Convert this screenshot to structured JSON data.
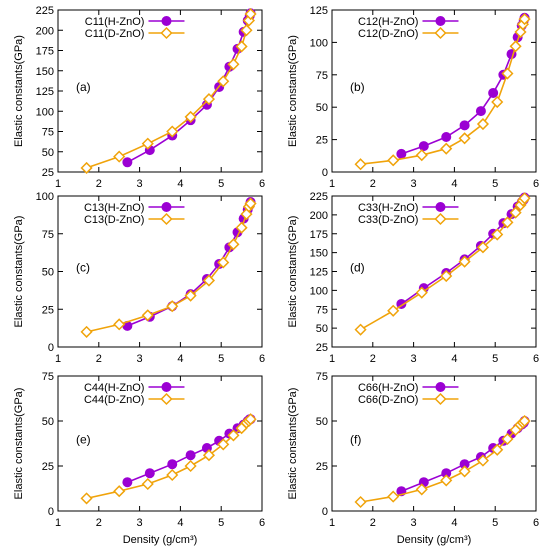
{
  "chart_data": [
    {
      "type": "line",
      "panel_label": "(a)",
      "ylabel": "Elastic constants(GPa)",
      "xlabel": "",
      "xlim": [
        1,
        6
      ],
      "ylim": [
        25,
        225
      ],
      "xticks": [
        1,
        2,
        3,
        4,
        5,
        6
      ],
      "yticks": [
        25,
        50,
        75,
        100,
        125,
        150,
        175,
        200,
        225
      ],
      "legend_position": "top-center",
      "series": [
        {
          "name": "C11(H-ZnO)",
          "color": "#9b00d3",
          "marker": "filled-circle",
          "x": [
            2.7,
            3.25,
            3.8,
            4.25,
            4.65,
            4.95,
            5.2,
            5.4,
            5.55,
            5.65,
            5.7,
            5.72
          ],
          "y": [
            37,
            52,
            70,
            89,
            108,
            130,
            155,
            177,
            198,
            212,
            218,
            221
          ]
        },
        {
          "name": "C11(D-ZnO)",
          "color": "#f0a30a",
          "marker": "open-diamond",
          "x": [
            1.7,
            2.5,
            3.2,
            3.8,
            4.25,
            4.7,
            5.05,
            5.3,
            5.5,
            5.62,
            5.68,
            5.72
          ],
          "y": [
            30,
            44,
            60,
            75,
            93,
            115,
            137,
            158,
            180,
            200,
            212,
            220
          ]
        }
      ]
    },
    {
      "type": "line",
      "panel_label": "(b)",
      "ylabel": "Elastic constants(GPa)",
      "xlabel": "",
      "xlim": [
        1,
        6
      ],
      "ylim": [
        0,
        125
      ],
      "xticks": [
        1,
        2,
        3,
        4,
        5,
        6
      ],
      "yticks": [
        0,
        25,
        50,
        75,
        100,
        125
      ],
      "legend_position": "top-center",
      "series": [
        {
          "name": "C12(H-ZnO)",
          "color": "#9b00d3",
          "marker": "filled-circle",
          "x": [
            2.7,
            3.25,
            3.8,
            4.25,
            4.65,
            4.95,
            5.2,
            5.4,
            5.55,
            5.65,
            5.7,
            5.72
          ],
          "y": [
            14,
            20,
            27,
            36,
            47,
            61,
            75,
            91,
            104,
            113,
            117,
            119
          ]
        },
        {
          "name": "C12(D-ZnO)",
          "color": "#f0a30a",
          "marker": "open-diamond",
          "x": [
            1.7,
            2.5,
            3.2,
            3.8,
            4.25,
            4.7,
            5.05,
            5.3,
            5.5,
            5.62,
            5.68,
            5.72
          ],
          "y": [
            6,
            9,
            13,
            18,
            26,
            37,
            54,
            76,
            97,
            108,
            114,
            118
          ]
        }
      ]
    },
    {
      "type": "line",
      "panel_label": "(c)",
      "ylabel": "Elastic constants(GPa)",
      "xlabel": "",
      "xlim": [
        1,
        6
      ],
      "ylim": [
        0,
        100
      ],
      "xticks": [
        1,
        2,
        3,
        4,
        5,
        6
      ],
      "yticks": [
        0,
        25,
        50,
        75,
        100
      ],
      "legend_position": "top-center",
      "series": [
        {
          "name": "C13(H-ZnO)",
          "color": "#9b00d3",
          "marker": "filled-circle",
          "x": [
            2.7,
            3.25,
            3.8,
            4.25,
            4.65,
            4.95,
            5.2,
            5.4,
            5.55,
            5.65,
            5.7,
            5.72
          ],
          "y": [
            14,
            20,
            27,
            35,
            45,
            55,
            66,
            76,
            85,
            91,
            94,
            96
          ]
        },
        {
          "name": "C13(D-ZnO)",
          "color": "#f0a30a",
          "marker": "open-diamond",
          "x": [
            1.7,
            2.5,
            3.2,
            3.8,
            4.25,
            4.7,
            5.05,
            5.3,
            5.5,
            5.62,
            5.68,
            5.72
          ],
          "y": [
            10,
            15,
            21,
            27,
            34,
            44,
            56,
            68,
            79,
            88,
            93,
            95
          ]
        }
      ]
    },
    {
      "type": "line",
      "panel_label": "(d)",
      "ylabel": "Elastic constants(GPa)",
      "xlabel": "",
      "xlim": [
        1,
        6
      ],
      "ylim": [
        25,
        225
      ],
      "xticks": [
        1,
        2,
        3,
        4,
        5,
        6
      ],
      "yticks": [
        25,
        50,
        75,
        100,
        125,
        150,
        175,
        200,
        225
      ],
      "legend_position": "top-center",
      "series": [
        {
          "name": "C33(H-ZnO)",
          "color": "#9b00d3",
          "marker": "filled-circle",
          "x": [
            2.7,
            3.25,
            3.8,
            4.25,
            4.65,
            4.95,
            5.2,
            5.4,
            5.55,
            5.65,
            5.7,
            5.72
          ],
          "y": [
            82,
            103,
            123,
            141,
            159,
            175,
            189,
            201,
            211,
            217,
            220,
            223
          ]
        },
        {
          "name": "C33(D-ZnO)",
          "color": "#f0a30a",
          "marker": "open-diamond",
          "x": [
            1.7,
            2.5,
            3.2,
            3.8,
            4.25,
            4.7,
            5.05,
            5.3,
            5.5,
            5.62,
            5.68,
            5.72
          ],
          "y": [
            48,
            73,
            97,
            119,
            138,
            157,
            174,
            190,
            203,
            213,
            219,
            222
          ]
        }
      ]
    },
    {
      "type": "line",
      "panel_label": "(e)",
      "ylabel": "Elastic constants(GPa)",
      "xlabel": "Density (g/cm³)",
      "xlim": [
        1,
        6
      ],
      "ylim": [
        0,
        75
      ],
      "xticks": [
        1,
        2,
        3,
        4,
        5,
        6
      ],
      "yticks": [
        0,
        25,
        50,
        75
      ],
      "legend_position": "top-center",
      "series": [
        {
          "name": "C44(H-ZnO)",
          "color": "#9b00d3",
          "marker": "filled-circle",
          "x": [
            2.7,
            3.25,
            3.8,
            4.25,
            4.65,
            4.95,
            5.2,
            5.4,
            5.55,
            5.65,
            5.7,
            5.72
          ],
          "y": [
            16,
            21,
            26,
            31,
            35,
            39,
            43,
            46,
            48,
            50,
            51,
            51
          ]
        },
        {
          "name": "C44(D-ZnO)",
          "color": "#f0a30a",
          "marker": "open-diamond",
          "x": [
            1.7,
            2.5,
            3.2,
            3.8,
            4.25,
            4.7,
            5.05,
            5.3,
            5.5,
            5.62,
            5.68,
            5.72
          ],
          "y": [
            7,
            11,
            15,
            20,
            25,
            31,
            37,
            42,
            46,
            49,
            50,
            51
          ]
        }
      ]
    },
    {
      "type": "line",
      "panel_label": "(f)",
      "ylabel": "Elastic constants(GPa)",
      "xlabel": "Density (g/cm³)",
      "xlim": [
        1,
        6
      ],
      "ylim": [
        0,
        75
      ],
      "xticks": [
        1,
        2,
        3,
        4,
        5,
        6
      ],
      "yticks": [
        0,
        25,
        50,
        75
      ],
      "legend_position": "top-center",
      "series": [
        {
          "name": "C66(H-ZnO)",
          "color": "#9b00d3",
          "marker": "filled-circle",
          "x": [
            2.7,
            3.25,
            3.8,
            4.25,
            4.65,
            4.95,
            5.2,
            5.4,
            5.55,
            5.65,
            5.7,
            5.72
          ],
          "y": [
            11,
            16,
            21,
            26,
            30,
            35,
            39,
            43,
            46,
            48,
            49,
            50
          ]
        },
        {
          "name": "C66(D-ZnO)",
          "color": "#f0a30a",
          "marker": "open-diamond",
          "x": [
            1.7,
            2.5,
            3.2,
            3.8,
            4.25,
            4.7,
            5.05,
            5.3,
            5.5,
            5.62,
            5.68,
            5.72
          ],
          "y": [
            5,
            8,
            12,
            17,
            22,
            28,
            34,
            40,
            45,
            48,
            49,
            50
          ]
        }
      ]
    }
  ]
}
